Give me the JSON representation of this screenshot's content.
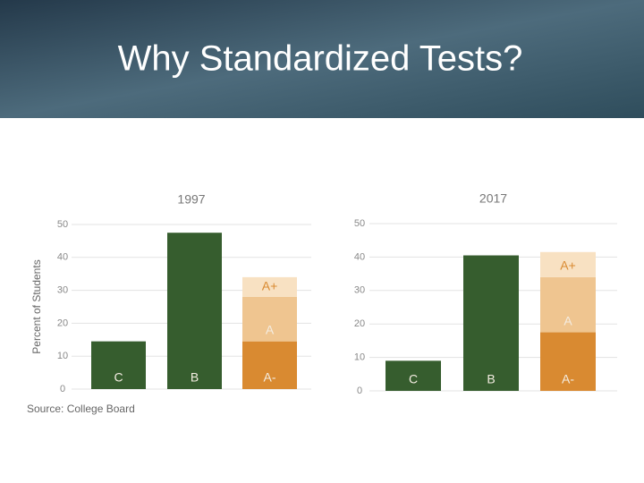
{
  "title": "Why Standardized Tests?",
  "source": "Source: College Board",
  "chart_data": [
    {
      "type": "stacked_bar",
      "title": "1997",
      "ylabel": "Percent of Students",
      "ylim": [
        0,
        50
      ],
      "yticks": [
        0,
        10,
        20,
        30,
        40,
        50
      ],
      "grid": true,
      "bars": [
        {
          "segments": [
            {
              "label": "C",
              "value": 14.5,
              "color": "#365d2e"
            }
          ]
        },
        {
          "segments": [
            {
              "label": "B",
              "value": 47.5,
              "color": "#365d2e"
            }
          ]
        },
        {
          "segments": [
            {
              "label": "A-",
              "value": 14.5,
              "color": "#d98a31"
            },
            {
              "label": "A",
              "value": 13.5,
              "color": "#efc590"
            },
            {
              "label": "A+",
              "value": 6,
              "color": "#f8e1c2"
            }
          ]
        }
      ]
    },
    {
      "type": "stacked_bar",
      "title": "2017",
      "ylim": [
        0,
        50
      ],
      "yticks": [
        0,
        10,
        20,
        30,
        40,
        50
      ],
      "grid": true,
      "bars": [
        {
          "segments": [
            {
              "label": "C",
              "value": 9,
              "color": "#365d2e"
            }
          ]
        },
        {
          "segments": [
            {
              "label": "B",
              "value": 40.5,
              "color": "#365d2e"
            }
          ]
        },
        {
          "segments": [
            {
              "label": "A-",
              "value": 17.5,
              "color": "#d98a31"
            },
            {
              "label": "A",
              "value": 16.5,
              "color": "#efc590"
            },
            {
              "label": "A+",
              "value": 7.5,
              "color": "#f8e1c2"
            }
          ]
        }
      ]
    }
  ]
}
